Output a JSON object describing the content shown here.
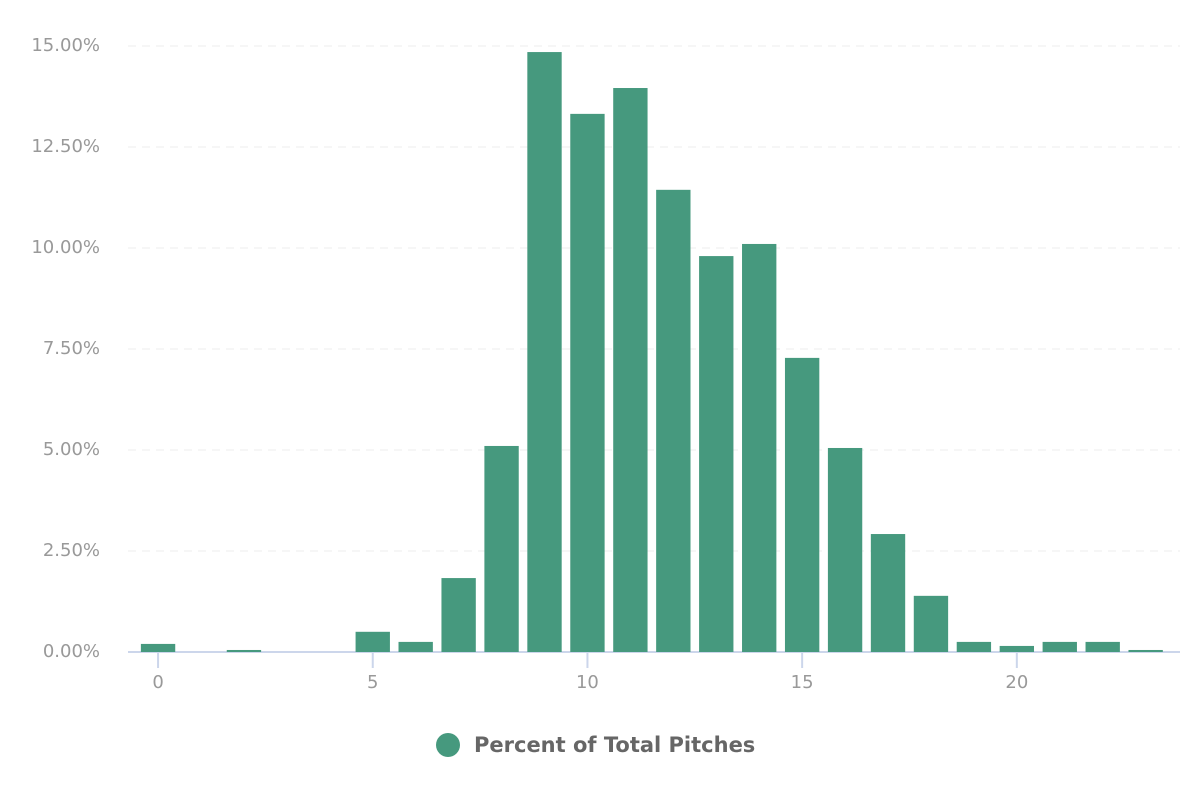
{
  "chart_data": {
    "type": "bar",
    "x": [
      0,
      2,
      5,
      6,
      7,
      8,
      9,
      10,
      11,
      12,
      13,
      14,
      15,
      16,
      17,
      18,
      19,
      20,
      21,
      22,
      23
    ],
    "series": [
      {
        "name": "Percent of Total Pitches",
        "color": "#46997e",
        "values": [
          0.2,
          0.05,
          0.5,
          0.25,
          1.83,
          5.1,
          14.85,
          13.32,
          13.96,
          11.44,
          9.8,
          10.1,
          7.28,
          5.05,
          2.92,
          1.39,
          0.25,
          0.15,
          0.25,
          0.25,
          0.05
        ]
      }
    ],
    "xlim": [
      -0.7,
      23.8
    ],
    "xticks": [
      0,
      5,
      10,
      15,
      20
    ],
    "ylim": [
      0,
      15
    ],
    "yticks": [
      {
        "value": 0,
        "label": "0.00%"
      },
      {
        "value": 2.5,
        "label": "2.50%"
      },
      {
        "value": 5,
        "label": "5.00%"
      },
      {
        "value": 7.5,
        "label": "7.50%"
      },
      {
        "value": 10,
        "label": "10.00%"
      },
      {
        "value": 12.5,
        "label": "12.50%"
      },
      {
        "value": 15,
        "label": "15.00%"
      }
    ],
    "grid": true
  }
}
